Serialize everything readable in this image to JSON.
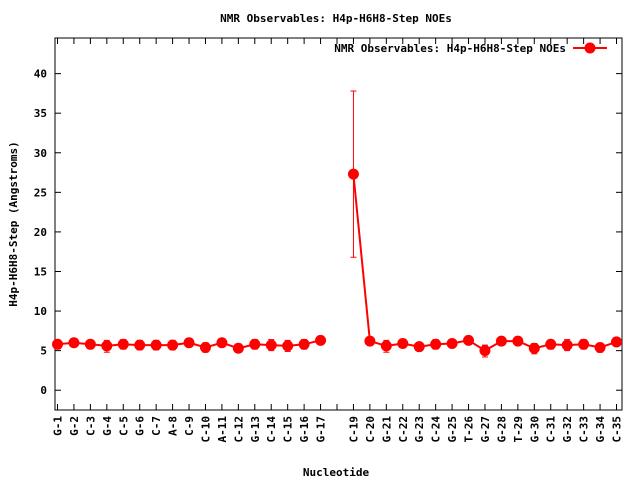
{
  "chart_data": {
    "type": "line",
    "title": "NMR Observables: H4p-H6H8-Step NOEs",
    "xlabel": "Nucleotide",
    "ylabel": "H4p-H6H8-Step (Angstroms)",
    "ylim": [
      -2.5,
      44.5
    ],
    "yticks": [
      0,
      5,
      10,
      15,
      20,
      25,
      30,
      35,
      40
    ],
    "grid": false,
    "legend_position": "top-right",
    "series_color": "#ff0000",
    "categories": [
      "G-1",
      "G-2",
      "C-3",
      "G-4",
      "C-5",
      "G-6",
      "C-7",
      "A-8",
      "C-9",
      "C-10",
      "A-11",
      "C-12",
      "G-13",
      "C-14",
      "C-15",
      "G-16",
      "G-17",
      "",
      "C-19",
      "C-20",
      "G-21",
      "C-22",
      "G-23",
      "C-24",
      "G-25",
      "T-26",
      "G-27",
      "G-28",
      "T-29",
      "G-30",
      "C-31",
      "G-32",
      "C-33",
      "G-34",
      "C-35"
    ],
    "series": [
      {
        "name": "NMR Observables: H4p-H6H8-Step NOEs",
        "values": [
          5.8,
          6.0,
          5.8,
          5.6,
          5.8,
          5.7,
          5.7,
          5.7,
          6.0,
          5.4,
          6.0,
          5.3,
          5.8,
          5.7,
          5.6,
          5.8,
          6.3,
          null,
          27.3,
          6.2,
          5.6,
          5.9,
          5.5,
          5.8,
          5.9,
          6.3,
          5.0,
          6.2,
          6.2,
          5.3,
          5.8,
          5.7,
          5.8,
          5.4,
          6.1
        ],
        "err_low": [
          5.2,
          5.5,
          5.3,
          4.8,
          5.2,
          5.1,
          5.1,
          5.1,
          5.6,
          4.8,
          5.5,
          4.8,
          5.2,
          5.0,
          4.9,
          5.2,
          5.8,
          null,
          16.8,
          5.8,
          4.8,
          5.4,
          5.0,
          5.2,
          5.4,
          5.8,
          4.2,
          5.7,
          5.8,
          4.6,
          5.2,
          5.0,
          5.2,
          4.8,
          5.6
        ],
        "err_high": [
          6.3,
          6.4,
          6.3,
          6.3,
          6.4,
          6.3,
          6.3,
          6.3,
          6.5,
          6.0,
          6.5,
          5.8,
          6.4,
          6.4,
          6.3,
          6.4,
          6.8,
          null,
          37.8,
          6.6,
          6.3,
          6.3,
          6.0,
          6.4,
          6.3,
          6.8,
          5.7,
          6.6,
          6.6,
          5.9,
          6.3,
          6.4,
          6.4,
          5.9,
          6.6
        ]
      }
    ]
  }
}
